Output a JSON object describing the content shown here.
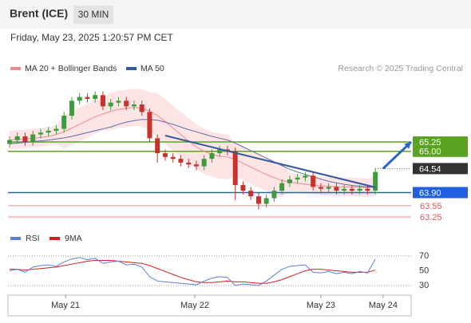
{
  "chart_data": {
    "type": "candlestick",
    "title": "Brent (ICE)",
    "timeframe": "30 MIN",
    "subtitle": "Friday, May 23, 2025 1:20:57 PM CET",
    "legend": [
      {
        "name": "MA 20 + Bollinger Bands",
        "color": "#f08a8a"
      },
      {
        "name": "MA 50",
        "color": "#34589a"
      }
    ],
    "credit": "Research © 2025 Trading Central",
    "up_color": "#3d9a3d",
    "down_color": "#c8322c",
    "band_color": "#fddede",
    "open": [
      65.2,
      65.3,
      65.4,
      65.25,
      65.45,
      65.5,
      65.55,
      65.6,
      65.95,
      66.35,
      66.45,
      66.4,
      66.5,
      66.2,
      66.3,
      66.35,
      66.2,
      66.25,
      66.05,
      65.35,
      64.95,
      64.85,
      64.8,
      64.7,
      64.65,
      64.6,
      64.8,
      64.95,
      65.05,
      65.0,
      64.1,
      63.95,
      63.8,
      63.6,
      63.75,
      63.95,
      64.15,
      64.25,
      64.3,
      64.35,
      64.05,
      64.0,
      64.05,
      63.95,
      64.0,
      63.95,
      64.0,
      63.95
    ],
    "high": [
      65.4,
      65.5,
      65.5,
      65.55,
      65.6,
      65.65,
      65.7,
      66.05,
      66.45,
      66.55,
      66.55,
      66.6,
      66.6,
      66.4,
      66.45,
      66.45,
      66.35,
      66.35,
      66.15,
      65.45,
      65.05,
      64.95,
      64.9,
      64.8,
      64.75,
      64.9,
      65.05,
      65.15,
      65.15,
      65.1,
      64.2,
      64.05,
      63.9,
      63.85,
      64.05,
      64.25,
      64.35,
      64.4,
      64.45,
      64.45,
      64.15,
      64.15,
      64.15,
      64.1,
      64.1,
      64.1,
      64.1,
      64.55
    ],
    "low": [
      65.1,
      65.2,
      65.15,
      65.15,
      65.35,
      65.4,
      65.45,
      65.5,
      65.85,
      66.25,
      66.3,
      66.3,
      66.1,
      66.1,
      66.2,
      66.1,
      66.1,
      65.95,
      65.25,
      64.7,
      64.75,
      64.7,
      64.6,
      64.55,
      64.5,
      64.5,
      64.7,
      64.85,
      64.9,
      63.7,
      63.85,
      63.7,
      63.45,
      63.5,
      63.65,
      63.85,
      64.05,
      64.15,
      64.2,
      63.95,
      63.9,
      63.9,
      63.85,
      63.85,
      63.85,
      63.85,
      63.85,
      63.85
    ],
    "close": [
      65.3,
      65.4,
      65.25,
      65.45,
      65.5,
      65.55,
      65.6,
      65.95,
      66.35,
      66.45,
      66.4,
      66.5,
      66.2,
      66.3,
      66.35,
      66.2,
      66.25,
      66.05,
      65.35,
      64.95,
      64.85,
      64.8,
      64.7,
      64.65,
      64.6,
      64.8,
      64.95,
      65.05,
      65.0,
      64.1,
      63.95,
      63.8,
      63.6,
      63.75,
      63.95,
      64.15,
      64.25,
      64.3,
      64.35,
      64.05,
      64.0,
      64.05,
      63.95,
      64.0,
      63.95,
      64.0,
      63.95,
      64.45
    ],
    "ma20": [
      65.3,
      65.32,
      65.33,
      65.35,
      65.37,
      65.4,
      65.45,
      65.52,
      65.62,
      65.72,
      65.82,
      65.92,
      66.0,
      66.07,
      66.12,
      66.15,
      66.17,
      66.15,
      66.08,
      65.95,
      65.8,
      65.62,
      65.45,
      65.28,
      65.12,
      65.0,
      64.92,
      64.87,
      64.85,
      64.78,
      64.68,
      64.58,
      64.48,
      64.38,
      64.3,
      64.22,
      64.18,
      64.15,
      64.12,
      64.1,
      64.08,
      64.07,
      64.06,
      64.05,
      64.05,
      64.04,
      64.03,
      64.05
    ],
    "bb_upper": [
      65.55,
      65.57,
      65.58,
      65.6,
      65.62,
      65.65,
      65.7,
      65.97,
      66.07,
      66.17,
      66.27,
      66.37,
      66.45,
      66.57,
      66.62,
      66.65,
      66.67,
      66.65,
      66.58,
      66.55,
      66.4,
      66.22,
      66.05,
      65.88,
      65.72,
      65.6,
      65.52,
      65.47,
      65.45,
      65.23,
      65.13,
      65.03,
      64.93,
      64.83,
      64.75,
      64.67,
      64.43,
      64.4,
      64.37,
      64.35,
      64.33,
      64.32,
      64.31,
      64.3,
      64.3,
      64.29,
      64.28,
      64.3
    ],
    "bb_lower": [
      65.05,
      65.07,
      65.08,
      65.1,
      65.12,
      65.15,
      65.2,
      65.07,
      65.17,
      65.27,
      65.37,
      65.47,
      65.55,
      65.57,
      65.62,
      65.65,
      65.67,
      65.65,
      65.58,
      65.35,
      65.2,
      65.02,
      64.85,
      64.68,
      64.52,
      64.4,
      64.32,
      64.27,
      64.25,
      64.33,
      64.23,
      64.13,
      64.03,
      63.93,
      63.85,
      63.77,
      63.93,
      63.9,
      63.87,
      63.85,
      63.83,
      63.82,
      63.81,
      63.8,
      63.8,
      63.79,
      63.78,
      63.8
    ],
    "ma50": [
      65.2,
      65.22,
      65.24,
      65.26,
      65.28,
      65.3,
      65.33,
      65.36,
      65.4,
      65.45,
      65.5,
      65.55,
      65.6,
      65.65,
      65.72,
      65.78,
      65.82,
      65.85,
      65.85,
      65.83,
      65.78,
      65.72,
      65.65,
      65.58,
      65.52,
      65.46,
      65.4,
      65.35,
      65.3,
      65.22,
      65.12,
      65.02,
      64.92,
      64.82,
      64.72,
      64.62,
      64.52,
      64.45,
      64.38,
      64.32,
      64.26,
      64.2,
      64.16,
      64.12,
      64.09,
      64.07,
      64.05,
      64.04
    ],
    "levels": [
      {
        "value": 65.25,
        "label": "65.25",
        "color": "#5aa320",
        "kind": "box"
      },
      {
        "value": 65,
        "label": "65.00",
        "color": "#5aa320",
        "kind": "box"
      },
      {
        "value": 64.54,
        "label": "64.54",
        "color": "#333333",
        "kind": "dotted"
      },
      {
        "value": 63.9,
        "label": "63.90",
        "color": "#1f5fe0",
        "kind": "box"
      },
      {
        "value": 63.55,
        "label": "63.55",
        "color": "#e05a5a",
        "kind": "text"
      },
      {
        "value": 63.25,
        "label": "63.25",
        "color": "#e05a5a",
        "kind": "text"
      }
    ],
    "trendline": {
      "x": [
        20,
        47
      ],
      "y": [
        65.42,
        64.04
      ],
      "color": "#34589a"
    },
    "arrow": {
      "x": [
        48,
        51.6
      ],
      "y": [
        64.54,
        65.25
      ],
      "color": "#2a66c8"
    },
    "xlim": [
      -0.2,
      51.6
    ],
    "ylim": [
      63.08,
      66.91
    ],
    "xticks": [
      {
        "value": 7.2,
        "label": "May 21"
      },
      {
        "value": 23.8,
        "label": "May 22"
      },
      {
        "value": 40,
        "label": "May 23"
      },
      {
        "value": 48,
        "label": "May 24"
      }
    ],
    "rsi": {
      "legend": [
        {
          "name": "RSI",
          "color": "#5b7fd6"
        },
        {
          "name": "9MA",
          "color": "#d42020"
        }
      ],
      "values": [
        50,
        52,
        48,
        55,
        57,
        58,
        56,
        62,
        66,
        68,
        65,
        67,
        60,
        62,
        63,
        58,
        59,
        55,
        42,
        36,
        35,
        34,
        33,
        32,
        31,
        36,
        40,
        42,
        41,
        30,
        32,
        31,
        30,
        36,
        44,
        52,
        56,
        57,
        58,
        48,
        47,
        49,
        46,
        48,
        46,
        49,
        47,
        66
      ],
      "ma_values": [
        52,
        52,
        51,
        52,
        53,
        54,
        55,
        57,
        59,
        61,
        63,
        64,
        64,
        64,
        63,
        62,
        61,
        60,
        57,
        53,
        49,
        45,
        41,
        38,
        35,
        34,
        34,
        35,
        36,
        35,
        35,
        34,
        33,
        33,
        35,
        38,
        42,
        46,
        50,
        52,
        52,
        51,
        50,
        49,
        48,
        48,
        48,
        51
      ],
      "ylim": [
        17,
        87
      ],
      "yticks": [
        30,
        50,
        70
      ]
    }
  }
}
